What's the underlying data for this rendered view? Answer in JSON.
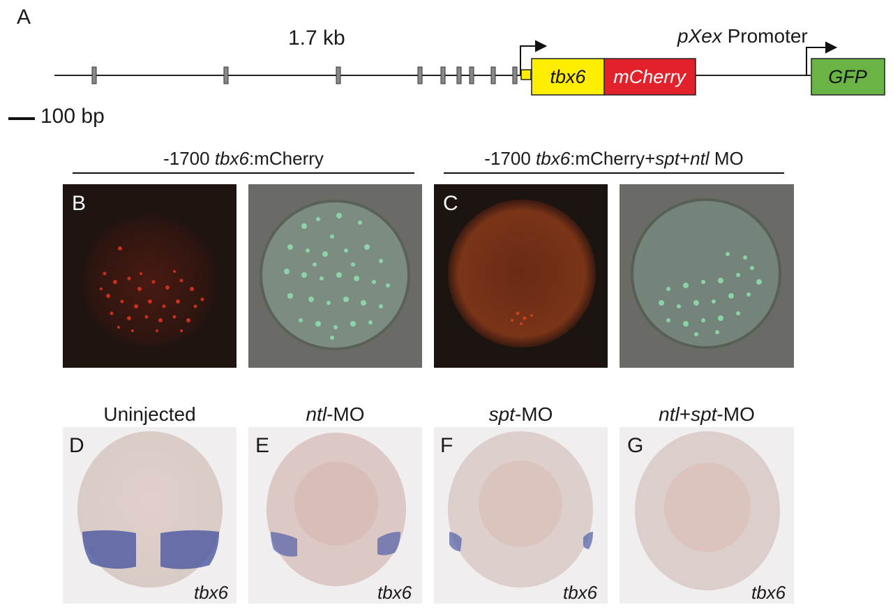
{
  "panel_a": {
    "letter": "A",
    "length_label": "1.7 kb",
    "promoter_label_italic": "pXex",
    "promoter_label_rest": " Promoter",
    "scale_label": "100 bp",
    "genes": {
      "tbx6": "tbx6",
      "mcherry": "mCherry",
      "gfp": "GFP"
    },
    "colors": {
      "tbx6": "#ffee00",
      "mcherry": "#e3212b",
      "gfp": "#6ab445"
    }
  },
  "header_left": {
    "pre": "-1700 ",
    "italic": "tbx6",
    "post": ":mCherry"
  },
  "header_right": {
    "pre": "-1700 ",
    "italic1": "tbx6",
    "mid1": ":mCherry+",
    "italic2": "spt",
    "mid2": "+",
    "italic3": "ntl",
    "post": " MO"
  },
  "panel_b": {
    "letter": "B"
  },
  "panel_c": {
    "letter": "C"
  },
  "bottom_panels": [
    {
      "letter": "D",
      "title_italic": "",
      "title_rest": "Uninjected",
      "gene": "tbx6"
    },
    {
      "letter": "E",
      "title_italic": "ntl",
      "title_rest": "-MO",
      "gene": "tbx6"
    },
    {
      "letter": "F",
      "title_italic": "spt",
      "title_rest": "-MO",
      "gene": "tbx6"
    },
    {
      "letter": "G",
      "title_italic": "ntl",
      "title_mid": "+",
      "title_italic2": "spt",
      "title_rest": "-MO",
      "gene": "tbx6"
    }
  ]
}
